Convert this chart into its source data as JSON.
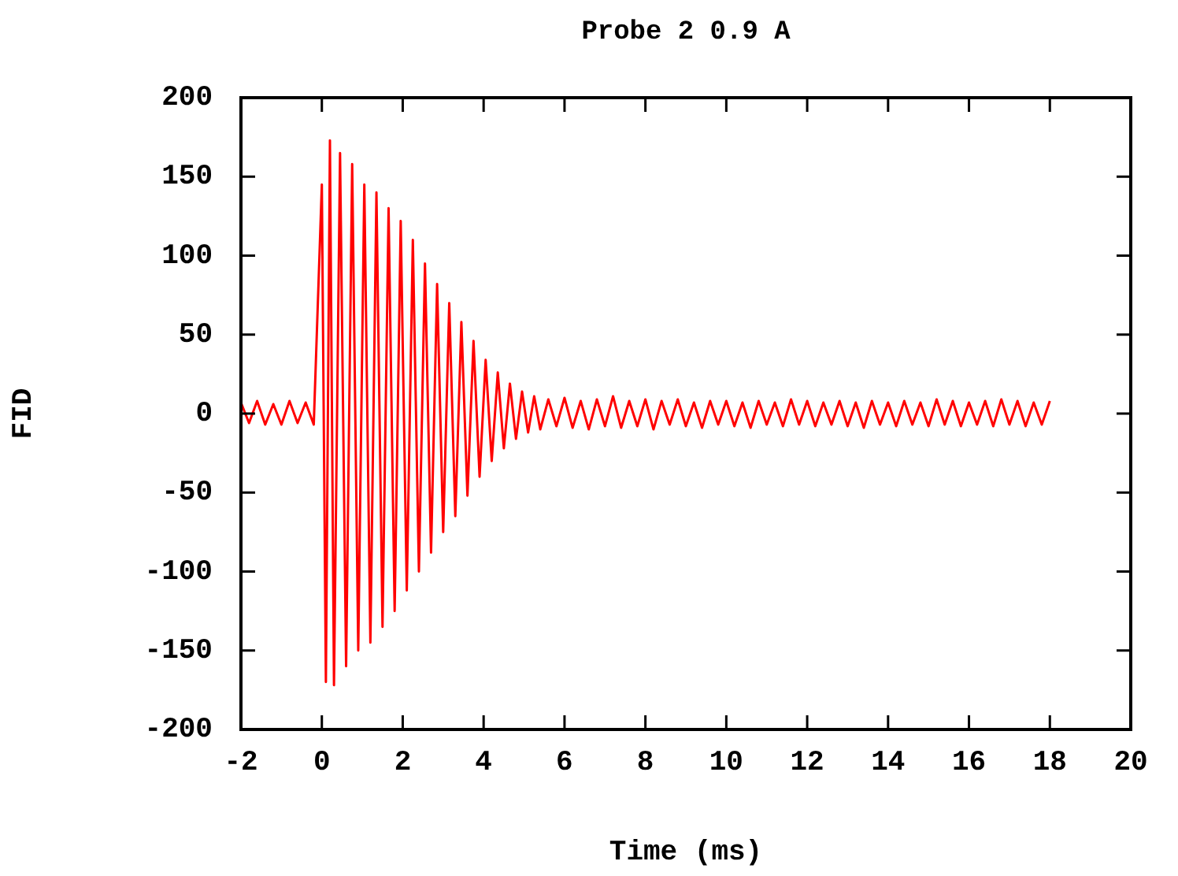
{
  "chart_data": {
    "type": "line",
    "title": "Probe 2 0.9 A",
    "xlabel": "Time (ms)",
    "ylabel": "FID",
    "xlim": [
      -2,
      20
    ],
    "xticks": [
      -2,
      0,
      2,
      4,
      6,
      8,
      10,
      12,
      14,
      16,
      18,
      20
    ],
    "ylim": [
      -200,
      200
    ],
    "yticks": [
      -200,
      -150,
      -100,
      -50,
      0,
      50,
      100,
      150,
      200
    ],
    "grid": false,
    "legend": false,
    "marker": "none",
    "line_style": "solid",
    "series": [
      {
        "color": "#ff0000",
        "x": [
          -2.0,
          -1.8,
          -1.6,
          -1.4,
          -1.2,
          -1.0,
          -0.8,
          -0.6,
          -0.4,
          -0.2,
          0.0,
          0.1,
          0.2,
          0.3,
          0.45,
          0.6,
          0.75,
          0.9,
          1.05,
          1.2,
          1.35,
          1.5,
          1.65,
          1.8,
          1.95,
          2.1,
          2.25,
          2.4,
          2.55,
          2.7,
          2.85,
          3.0,
          3.15,
          3.3,
          3.45,
          3.6,
          3.75,
          3.9,
          4.05,
          4.2,
          4.35,
          4.5,
          4.65,
          4.8,
          4.95,
          5.1,
          5.25,
          5.4,
          5.6,
          5.8,
          6.0,
          6.2,
          6.4,
          6.6,
          6.8,
          7.0,
          7.2,
          7.4,
          7.6,
          7.8,
          8.0,
          8.2,
          8.4,
          8.6,
          8.8,
          9.0,
          9.2,
          9.4,
          9.6,
          9.8,
          10.0,
          10.2,
          10.4,
          10.6,
          10.8,
          11.0,
          11.2,
          11.4,
          11.6,
          11.8,
          12.0,
          12.2,
          12.4,
          12.6,
          12.8,
          13.0,
          13.2,
          13.4,
          13.6,
          13.8,
          14.0,
          14.2,
          14.4,
          14.6,
          14.8,
          15.0,
          15.2,
          15.4,
          15.6,
          15.8,
          16.0,
          16.2,
          16.4,
          16.6,
          16.8,
          17.0,
          17.2,
          17.4,
          17.6,
          17.8,
          18.0
        ],
        "values": [
          7,
          -6,
          8,
          -7,
          6,
          -7,
          8,
          -6,
          7,
          -7,
          145,
          -170,
          173,
          -172,
          165,
          -160,
          158,
          -150,
          145,
          -145,
          140,
          -135,
          130,
          -125,
          122,
          -112,
          110,
          -100,
          95,
          -88,
          82,
          -75,
          70,
          -65,
          58,
          -52,
          46,
          -40,
          34,
          -30,
          26,
          -22,
          19,
          -16,
          14,
          -12,
          11,
          -10,
          9,
          -8,
          10,
          -9,
          8,
          -10,
          9,
          -8,
          11,
          -9,
          8,
          -8,
          9,
          -10,
          8,
          -7,
          9,
          -8,
          7,
          -9,
          8,
          -7,
          8,
          -8,
          7,
          -9,
          8,
          -7,
          7,
          -8,
          9,
          -7,
          8,
          -8,
          7,
          -7,
          8,
          -8,
          7,
          -9,
          8,
          -7,
          7,
          -8,
          8,
          -7,
          7,
          -8,
          9,
          -7,
          8,
          -8,
          7,
          -7,
          8,
          -8,
          9,
          -7,
          8,
          -8,
          7,
          -7,
          8
        ]
      }
    ]
  }
}
